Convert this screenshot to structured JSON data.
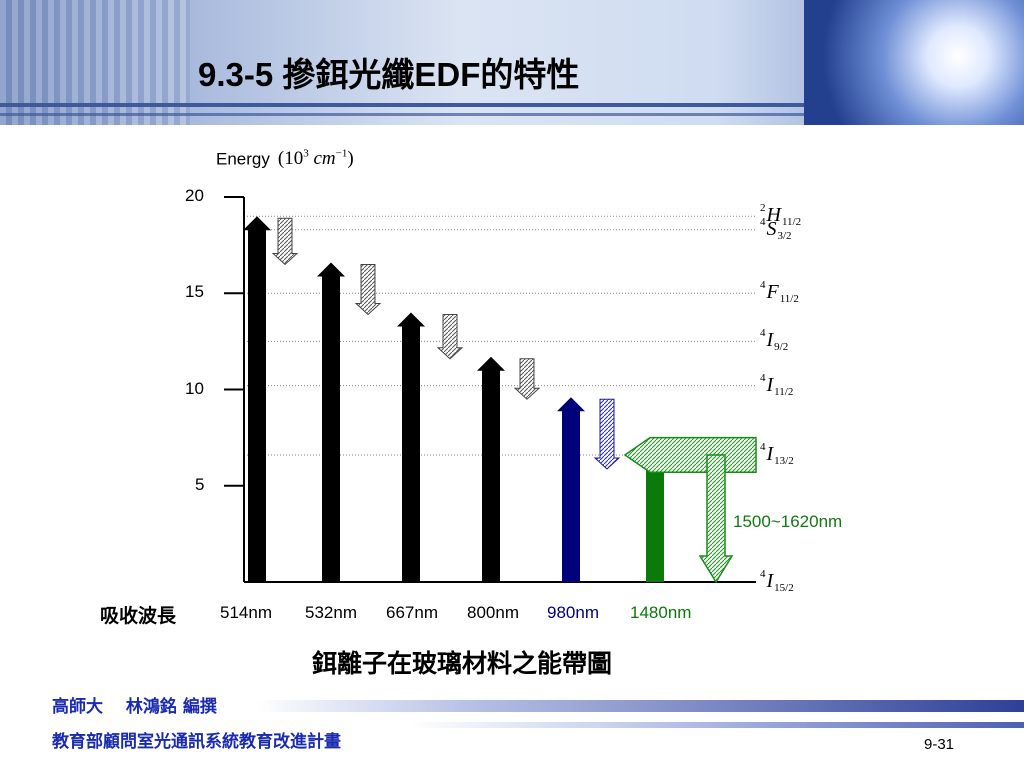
{
  "slide": {
    "title": "9.3-5 摻鉺光纖EDF的特性",
    "page_number": "9-31",
    "footer_author": "高師大　  林鴻銘  編撰",
    "footer_program": "教育部顧問室光通訊系統教育改進計畫"
  },
  "diagram": {
    "ylabel": "Energy",
    "ylabel_unit": {
      "base": "10",
      "exp": "3",
      "unit": "cm",
      "unit_exp": "−1"
    },
    "ylim": [
      0,
      20
    ],
    "yticks": [
      {
        "value": 20,
        "label": "20"
      },
      {
        "value": 15,
        "label": "15"
      },
      {
        "value": 10,
        "label": "10"
      },
      {
        "value": 5,
        "label": "5"
      }
    ],
    "levels": [
      {
        "name": "H",
        "mult": "2",
        "sub": "11/2",
        "energy": 19.0
      },
      {
        "name": "S",
        "mult": "4",
        "sub": "3/2",
        "energy": 18.3
      },
      {
        "name": "F",
        "mult": "4",
        "sub": "11/2",
        "energy": 15.0
      },
      {
        "name": "I",
        "mult": "4",
        "sub": "9/2",
        "energy": 12.5
      },
      {
        "name": "I",
        "mult": "4",
        "sub": "11/2",
        "energy": 10.2
      },
      {
        "name": "I",
        "mult": "4",
        "sub": "13/2",
        "energy": 6.6
      },
      {
        "name": "I",
        "mult": "4",
        "sub": "15/2",
        "energy": 0
      }
    ],
    "absorption_label": "吸收波長",
    "absorption": [
      {
        "wavelength": "514nm",
        "energy": 19.0,
        "color": "#000000"
      },
      {
        "wavelength": "532nm",
        "energy": 16.6,
        "color": "#000000"
      },
      {
        "wavelength": "667nm",
        "energy": 14.0,
        "color": "#000000"
      },
      {
        "wavelength": "800nm",
        "energy": 11.7,
        "color": "#000000"
      },
      {
        "wavelength": "980nm",
        "energy": 9.6,
        "color": "#00007a"
      },
      {
        "wavelength": "1480nm",
        "energy": 6.7,
        "color": "#0a7a0a"
      }
    ],
    "emission_range": "1500~1620nm",
    "caption": "鉺離子在玻璃材料之能帶圖"
  }
}
